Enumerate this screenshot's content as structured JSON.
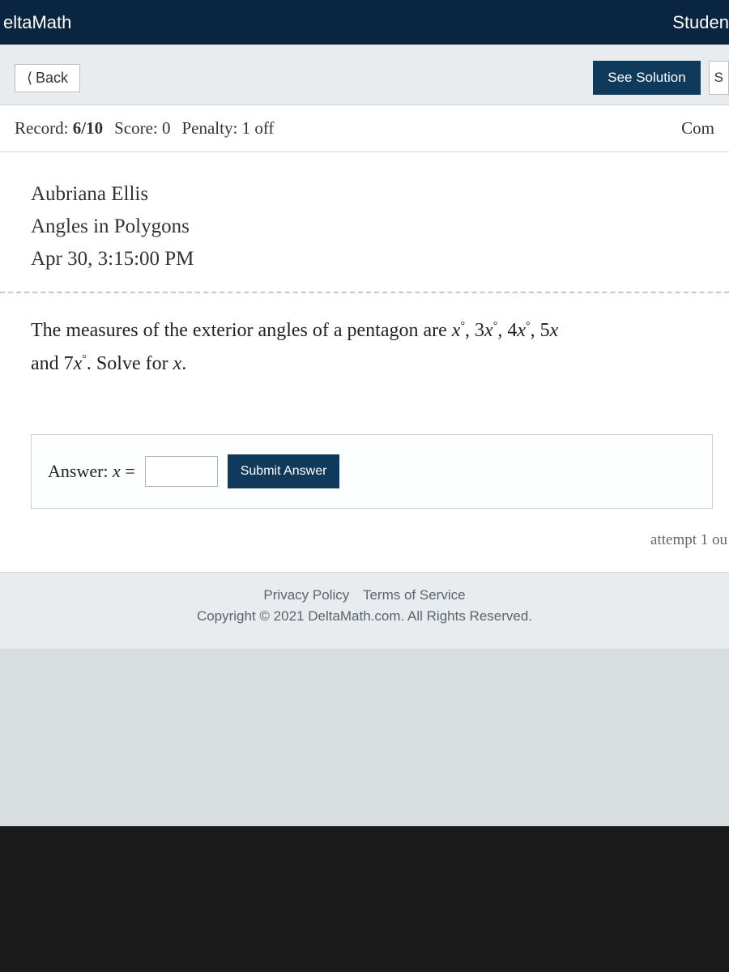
{
  "header": {
    "brand": "eltaMath",
    "right": "Studen"
  },
  "nav": {
    "back": "Back",
    "see_solution": "See Solution",
    "cutoff": "S"
  },
  "record_row": {
    "record_label": "Record:",
    "record_value": "6/10",
    "score_label": "Score:",
    "score_value": "0",
    "penalty_label": "Penalty:",
    "penalty_value": "1 off",
    "right_cutoff": "Com"
  },
  "student": {
    "name": "Aubriana Ellis",
    "topic": "Angles in Polygons",
    "datetime": "Apr 30, 3:15:00 PM"
  },
  "question": {
    "line1_prefix": "The measures of the exterior angles of a pentagon are ",
    "terms": [
      "x",
      "3x",
      "4x",
      "5x"
    ],
    "line2_prefix": "and ",
    "last_term": "7x",
    "line2_suffix": ". Solve for ",
    "var": "x",
    "period": "."
  },
  "answer": {
    "label_prefix": "Answer: ",
    "var": "x",
    "equals": " =",
    "input_value": "",
    "submit": "Submit Answer"
  },
  "attempt": "attempt 1 ou",
  "footer": {
    "privacy": "Privacy Policy",
    "terms": "Terms of Service",
    "copyright": "Copyright © 2021 DeltaMath.com. All Rights Reserved."
  },
  "colors": {
    "header_bg": "#0a2540",
    "primary_btn": "#103a5c",
    "page_bg": "#e8ecee",
    "card_bg": "#ffffff"
  }
}
